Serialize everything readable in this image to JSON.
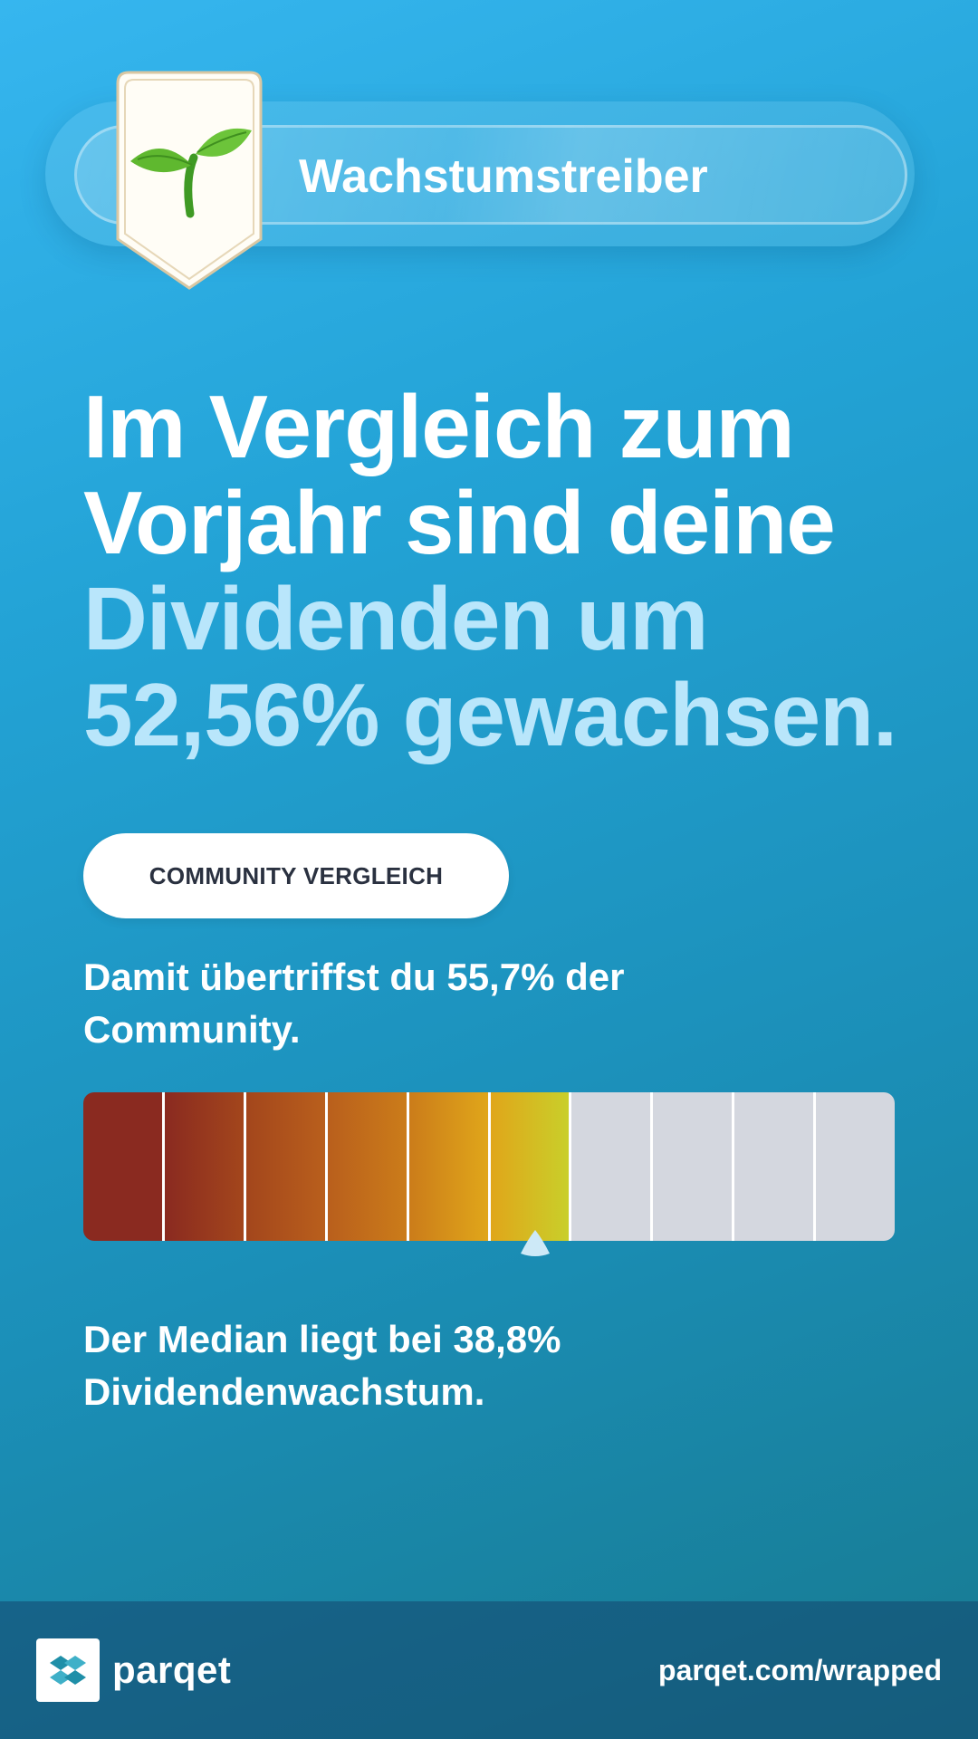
{
  "badge": {
    "title": "Wachstumstreiber",
    "icon": "seedling-icon"
  },
  "headline": {
    "line1": "Im Vergleich zum",
    "line2": "Vorjahr sind deine",
    "highlight1": "Dividenden um",
    "highlight2": "52,56% gewachsen."
  },
  "community": {
    "button_label": "COMMUNITY VERGLEICH",
    "line1": "Damit übertriffst du 55,7% der",
    "line2": "Community.",
    "percentile": 0.557,
    "segments_total": 10,
    "segments_filled": 6,
    "segment_colors": [
      "#8a2a20",
      "#a3461c",
      "#b95f1c",
      "#cb7c1a",
      "#e0a61a",
      "#f0cc1a",
      "#d4d7df",
      "#d4d7df",
      "#d4d7df",
      "#d4d7df"
    ]
  },
  "median": {
    "line1": "Der Median liegt bei 38,8%",
    "line2": "Dividendenwachstum."
  },
  "footer": {
    "brand": "parqet",
    "url": "parqet.com/wrapped"
  },
  "colors": {
    "highlight": "#b9e6fb",
    "button_text": "#2a3140"
  }
}
